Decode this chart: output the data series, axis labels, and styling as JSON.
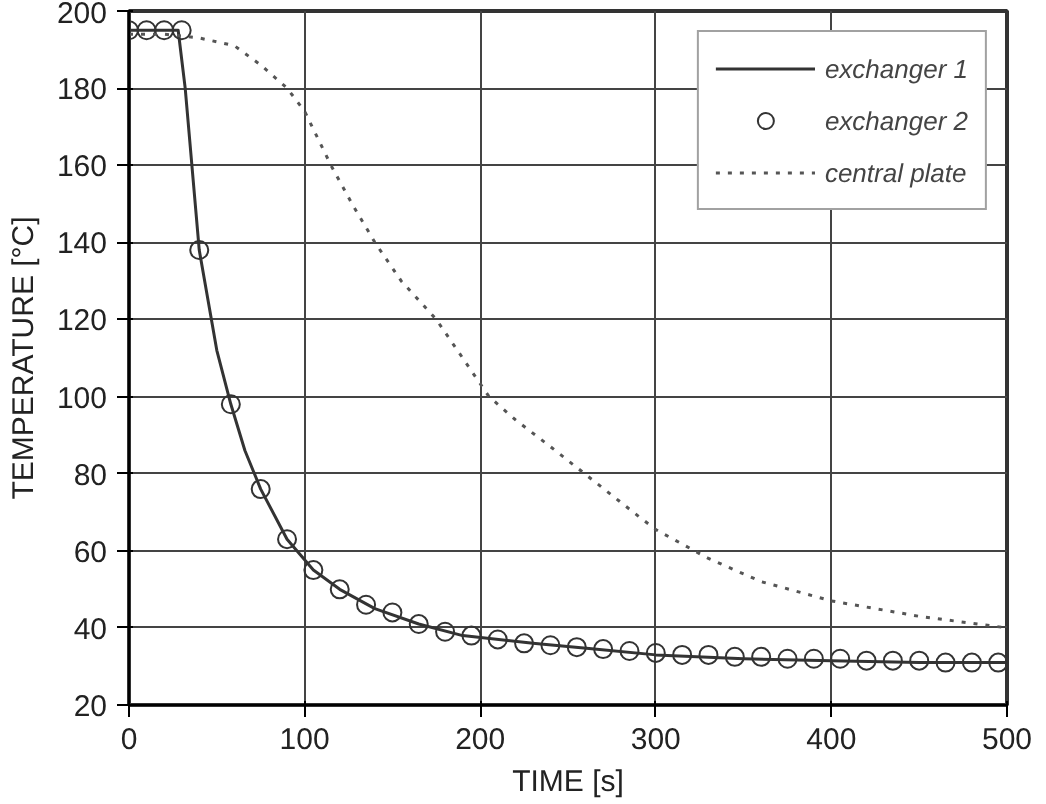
{
  "chart_data": {
    "type": "line",
    "xlabel": "TIME [s]",
    "ylabel": "TEMPERATURE [°C]",
    "xlim": [
      0,
      500
    ],
    "ylim": [
      20,
      200
    ],
    "xticks": [
      0,
      100,
      200,
      300,
      400,
      500
    ],
    "yticks": [
      20,
      40,
      60,
      80,
      100,
      120,
      140,
      160,
      180,
      200
    ],
    "grid": true,
    "legend": "top right",
    "series": [
      {
        "name": "exchanger 1",
        "color": "#333333",
        "line_style": "solid",
        "x": [
          0,
          10,
          20,
          28,
          32,
          40,
          50,
          58,
          66,
          75,
          90,
          105,
          120,
          140,
          165,
          190,
          230,
          265,
          300,
          350,
          400,
          450,
          500
        ],
        "values": [
          195,
          195,
          195,
          195,
          180,
          138,
          112,
          98,
          86,
          76,
          63,
          55,
          50,
          45,
          41,
          38,
          36,
          34.5,
          33,
          32,
          31.5,
          31,
          31
        ]
      },
      {
        "name": "exchanger 2",
        "color": "#333333",
        "type": "scatter",
        "marker": "circle",
        "x": [
          0,
          10,
          20,
          30,
          40,
          58,
          75,
          90,
          105,
          120,
          135,
          150,
          165,
          180,
          195,
          210,
          225,
          240,
          255,
          270,
          285,
          300,
          315,
          330,
          345,
          360,
          375,
          390,
          405,
          420,
          435,
          450,
          465,
          480,
          495
        ],
        "values": [
          195,
          195,
          195,
          195,
          138,
          98,
          76,
          63,
          55,
          50,
          46,
          44,
          41,
          39,
          38,
          37,
          36,
          35.5,
          35,
          34.5,
          34,
          33.5,
          33,
          33,
          32.5,
          32.5,
          32,
          32,
          32,
          31.5,
          31.5,
          31.5,
          31,
          31,
          31
        ]
      },
      {
        "name": "central plate",
        "color": "#555555",
        "line_style": "dotted",
        "x": [
          0,
          20,
          40,
          60,
          75,
          90,
          100,
          115,
          127,
          140,
          155,
          175,
          190,
          205,
          220,
          240,
          265,
          290,
          300,
          330,
          360,
          400,
          450,
          500
        ],
        "values": [
          194,
          194,
          193,
          191,
          186,
          180,
          174,
          160,
          150,
          140,
          130,
          120,
          110,
          100,
          94,
          87,
          78,
          69,
          65.5,
          58,
          52,
          47,
          43,
          40
        ]
      }
    ]
  }
}
